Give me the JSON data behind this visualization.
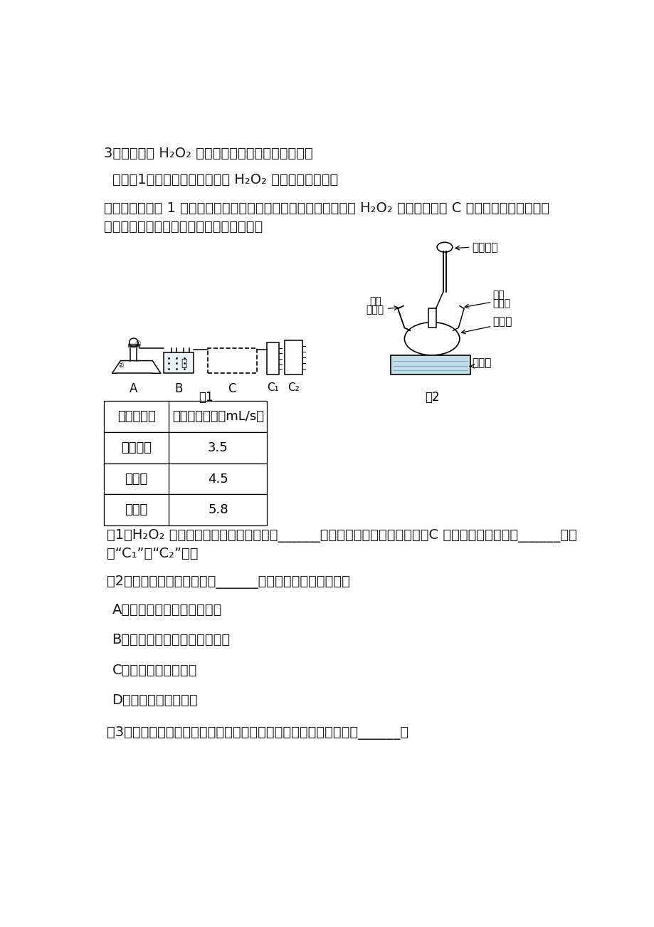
{
  "bg_color": "#ffffff",
  "text_color": "#1a1a1a",
  "para1": "3、某小组对 H₂O₂ 溶液制取氧气进行了如下探究：",
  "para2": "（探究1）：探究不同傅化剂对 H₂O₂ 分解快慢的影响。",
  "para3": "该小组采用如图 1 所示装置进行实验，实验选用下表中的傅化剂与 H₂O₂ 溶液反应，在 C 框中连接导管和量筒，",
  "para3b": "并测量相关数据，经计算后的数据如下表：",
  "table_headers": [
    "傅化剂种类",
    "气体产生速率（mL/s）"
  ],
  "table_rows": [
    [
      "二氧化锰",
      "3.5"
    ],
    [
      "氧化锐",
      "4.5"
    ],
    [
      "活性炭",
      "5.8"
    ]
  ],
  "q1": "（1）H₂O₂ 溶液制取氧气的反应方程式是______，为精确测定排出水的体积，C 框内应选用的装置为______（选",
  "q1b": "填“C₁”或“C₂”）。",
  "q2": "（2）实验中，可以通过测定______（选填字母）进行探究。",
  "optA": "A．相同时间产生氧气的体积",
  "optB": "B．产生相同体积氧气所需时间",
  "optC": "C．产生氧气的总质量",
  "optD": "D．产生氧气的总体积",
  "q3": "（3）从实验数据可知：相同条件上表中傅化剂的傅化效果最好的是______。"
}
